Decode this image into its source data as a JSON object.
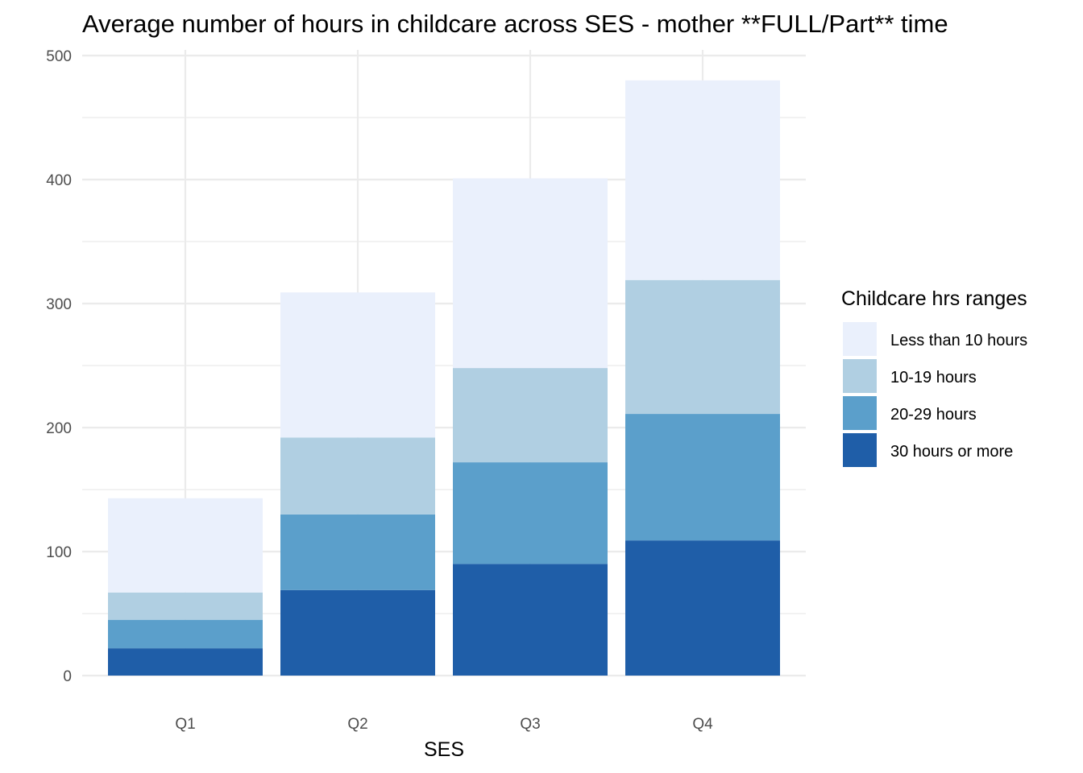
{
  "chart_data": {
    "type": "bar",
    "stacked": true,
    "title": "Average number of hours in childcare across SES - mother **FULL/Part** time",
    "xlabel": "SES",
    "ylabel": "",
    "ylim": [
      0,
      500
    ],
    "yticks": [
      "0",
      "100",
      "200",
      "300",
      "400",
      "500"
    ],
    "grid": true,
    "legend": {
      "title": "Childcare hrs ranges",
      "position": "right"
    },
    "categories": [
      "Q1",
      "Q2",
      "Q3",
      "Q4"
    ],
    "series": [
      {
        "name": "30 hours or more",
        "color": "#1f5ea8",
        "values": [
          22,
          69,
          90,
          109
        ]
      },
      {
        "name": "20-29 hours",
        "color": "#5b9fcb",
        "values": [
          23,
          61,
          82,
          102
        ]
      },
      {
        "name": "10-19 hours",
        "color": "#b0cfe2",
        "values": [
          22,
          62,
          76,
          108
        ]
      },
      {
        "name": "Less than 10 hours",
        "color": "#eaf0fc",
        "values": [
          76,
          117,
          153,
          161
        ]
      }
    ]
  }
}
